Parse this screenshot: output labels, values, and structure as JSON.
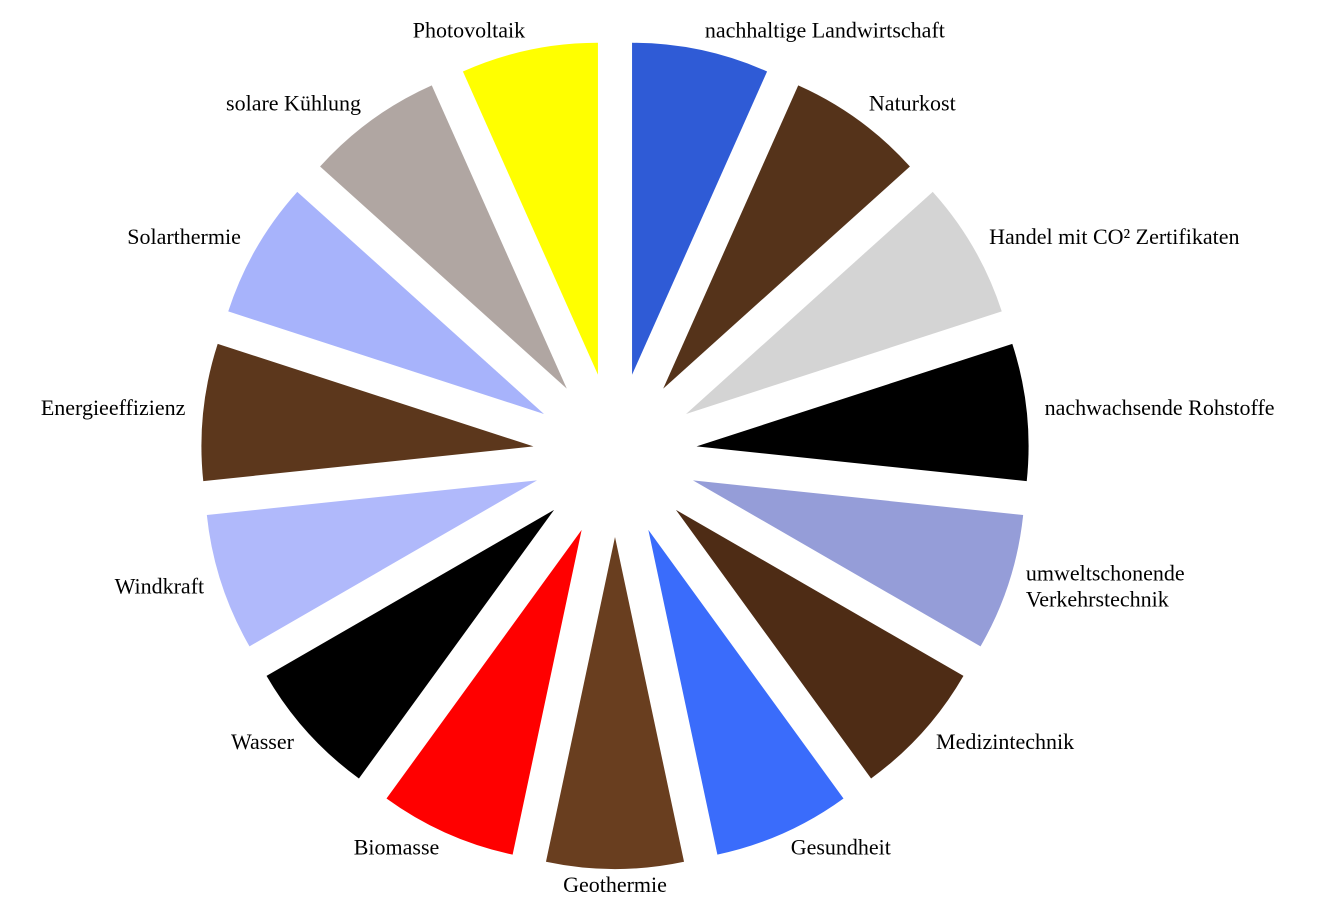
{
  "chart_data": {
    "type": "pie",
    "categories": [
      "nachhaltige Landwirtschaft",
      "Naturkost",
      "Handel mit CO² Zertifikaten",
      "nachwachsende Rohstoffe",
      "umweltschonende\nVerkehrstechnik",
      "Medizintechnik",
      "Gesundheit",
      "Geothermie",
      "Biomasse",
      "Wasser",
      "Windkraft",
      "Energieeffizienz",
      "Solarthermie",
      "solare Kühlung",
      "Photovoltaik"
    ],
    "values": [
      1,
      1,
      1,
      1,
      1,
      1,
      1,
      1,
      1,
      1,
      1,
      1,
      1,
      1,
      1
    ],
    "colors": [
      "#2f5bd6",
      "#55331a",
      "#d4d4d4",
      "#000000",
      "#959dd8",
      "#4e2c15",
      "#3a6cfb",
      "#693e1f",
      "#ff0000",
      "#000000",
      "#b0b9fb",
      "#5c371c",
      "#a7b3fb",
      "#b0a6a2",
      "#ffff00"
    ]
  }
}
